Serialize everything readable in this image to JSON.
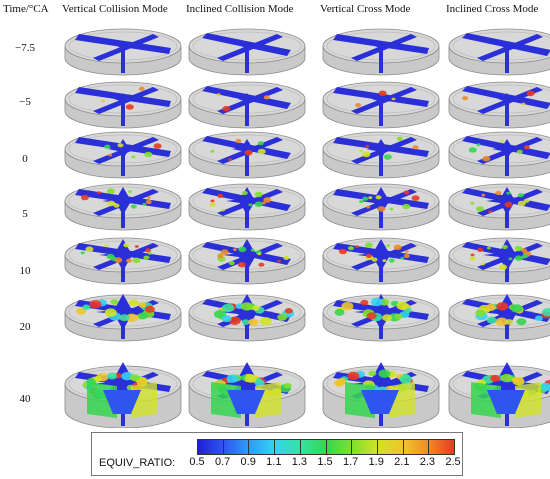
{
  "time_axis_label": "Time/°CA",
  "modes": [
    "Vertical Collision Mode",
    "Inclined Collision Mode",
    "Vertical Cross Mode",
    "Inclined Cross Mode"
  ],
  "time_steps": [
    "−7.5",
    "−5",
    "0",
    "5",
    "10",
    "20",
    "40"
  ],
  "legend": {
    "title": "EQUIV_RATIO:",
    "ticks": [
      "0.5",
      "0.7",
      "0.9",
      "1.1",
      "1.3",
      "1.5",
      "1.7",
      "1.9",
      "2.1",
      "2.3",
      "2.5"
    ],
    "colors": [
      "#1f1fd6",
      "#2f55f0",
      "#2f9cf5",
      "#34d3f0",
      "#35e2a0",
      "#35d650",
      "#7ee02c",
      "#d2e228",
      "#f0c42a",
      "#f08a26",
      "#e83a22"
    ]
  }
}
